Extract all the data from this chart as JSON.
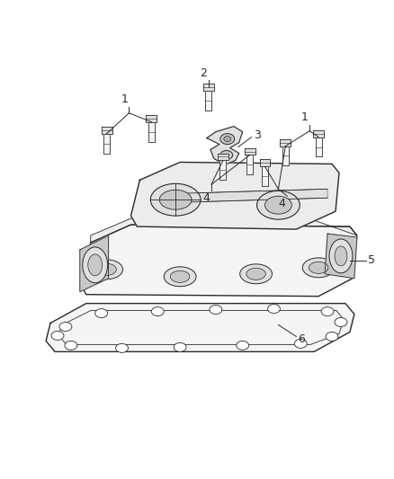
{
  "bg_color": "#ffffff",
  "line_color": "#2a2a2a",
  "fill_light": "#f5f5f5",
  "fill_mid": "#e0e0e0",
  "fill_dark": "#c8c8c8",
  "fill_darker": "#b0b0b0",
  "figsize": [
    4.38,
    5.33
  ],
  "dpi": 100,
  "lw_main": 1.0,
  "lw_thin": 0.6,
  "lw_label": 0.7
}
